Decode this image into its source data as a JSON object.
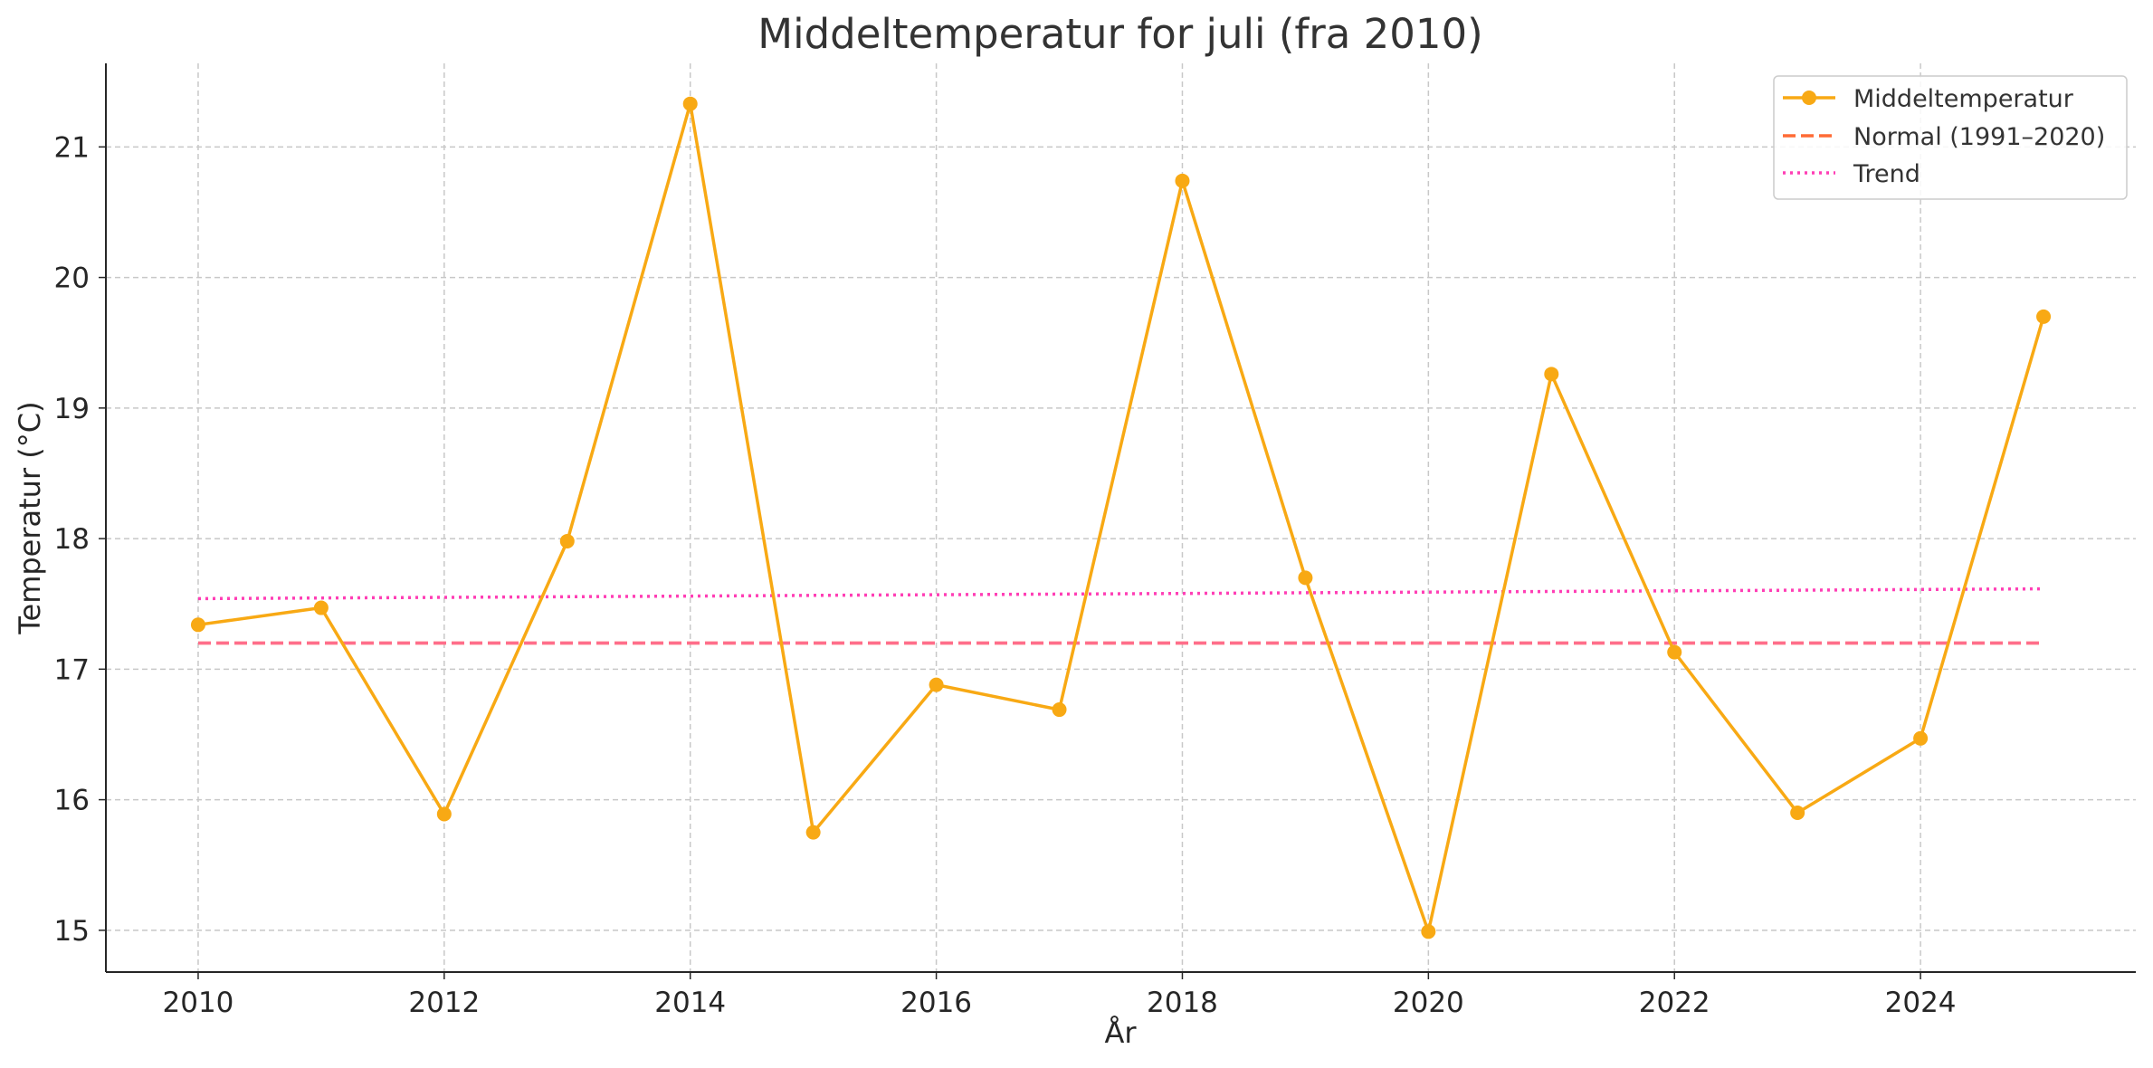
{
  "chart_data": {
    "type": "line",
    "title": "Middeltemperatur for juli (fra 2010)",
    "xlabel": "År",
    "ylabel": "Temperatur (°C)",
    "xlim": [
      2009.25,
      2025.75
    ],
    "ylim": [
      14.68,
      21.64
    ],
    "xticks": [
      2010,
      2012,
      2014,
      2016,
      2018,
      2020,
      2022,
      2024
    ],
    "yticks": [
      15,
      16,
      17,
      18,
      19,
      20,
      21
    ],
    "grid": true,
    "legend_position": "top-right",
    "x": [
      2010,
      2011,
      2012,
      2013,
      2014,
      2015,
      2016,
      2017,
      2018,
      2019,
      2020,
      2021,
      2022,
      2023,
      2024,
      2025
    ],
    "series": [
      {
        "name": "Middeltemperatur",
        "style": "solid-markers",
        "color": "#F8A914",
        "values": [
          17.34,
          17.47,
          15.89,
          17.98,
          21.33,
          15.75,
          16.88,
          16.69,
          20.74,
          17.7,
          14.99,
          19.26,
          17.13,
          15.9,
          16.47,
          19.7
        ]
      },
      {
        "name": "Normal (1991–2020)",
        "style": "dashed",
        "color": "#FF6B35",
        "overlay_color": "#FF6FA8",
        "values": [
          17.2,
          17.2,
          17.2,
          17.2,
          17.2,
          17.2,
          17.2,
          17.2,
          17.2,
          17.2,
          17.2,
          17.2,
          17.2,
          17.2,
          17.2,
          17.2
        ]
      },
      {
        "name": "Trend",
        "style": "dotted",
        "color": "#FF3EB5",
        "values": [
          17.54,
          17.545,
          17.55,
          17.555,
          17.56,
          17.565,
          17.57,
          17.575,
          17.58,
          17.585,
          17.59,
          17.595,
          17.6,
          17.605,
          17.61,
          17.615
        ]
      }
    ]
  }
}
